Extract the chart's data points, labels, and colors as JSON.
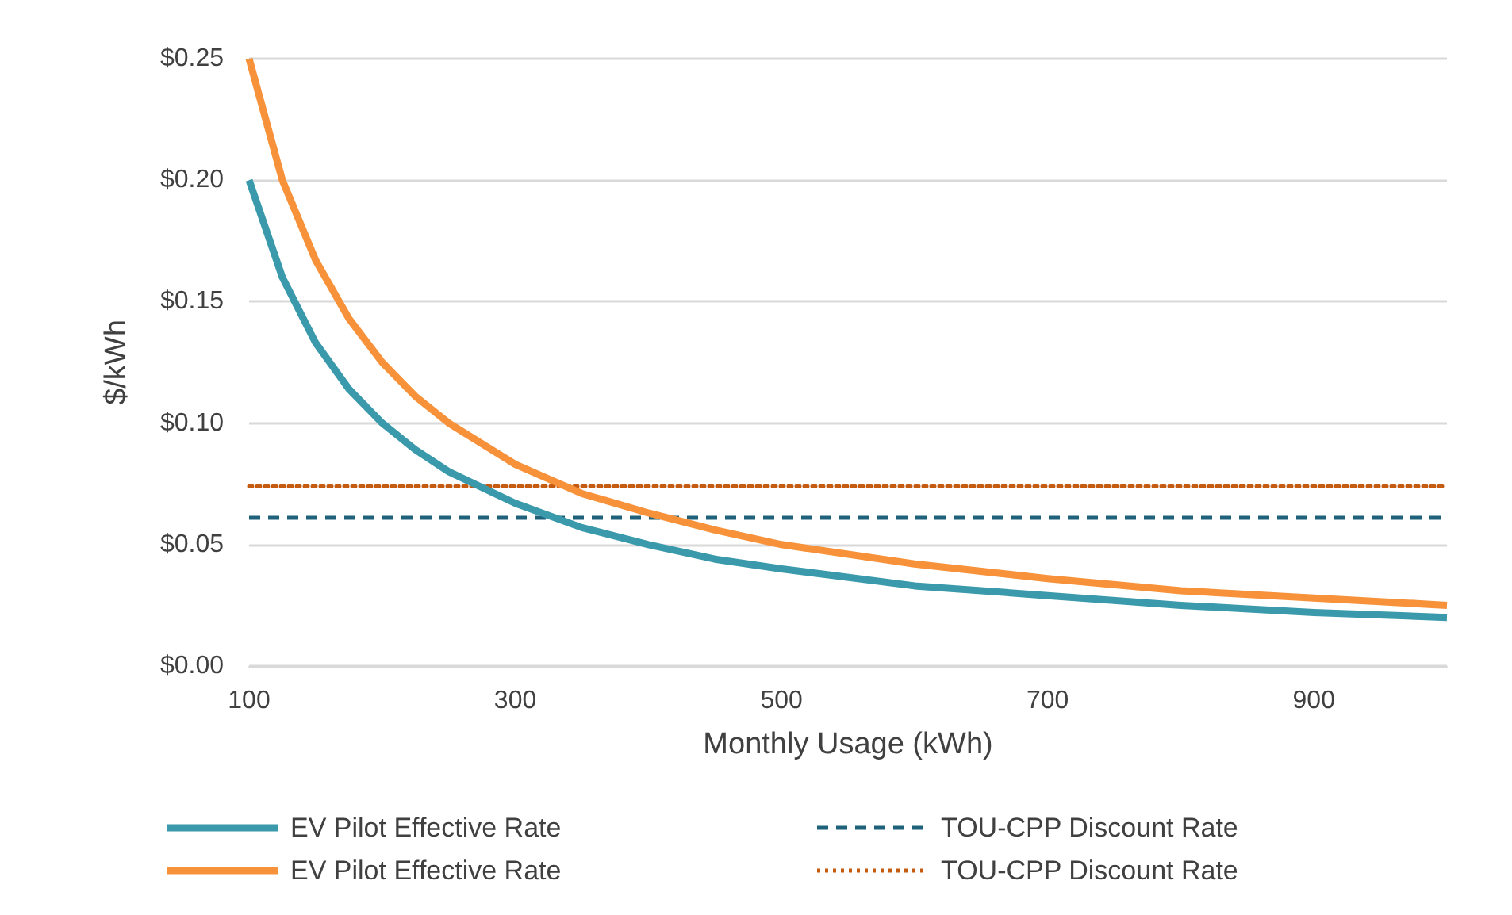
{
  "chart_data": {
    "type": "line",
    "xlabel": "Monthly Usage (kWh)",
    "ylabel": "$/kWh",
    "xlim": [
      100,
      1000
    ],
    "xticks": [
      100,
      300,
      500,
      700,
      900
    ],
    "ylim": [
      0,
      0.25
    ],
    "yticks": [
      {
        "value": 0,
        "label": "$0.00"
      },
      {
        "value": 0.05,
        "label": "$0.05"
      },
      {
        "value": 0.1,
        "label": "$0.10"
      },
      {
        "value": 0.15,
        "label": "$0.15"
      },
      {
        "value": 0.2,
        "label": "$0.20"
      },
      {
        "value": 0.25,
        "label": "$0.25"
      }
    ],
    "grid": "y",
    "legend": "bottom",
    "marker": "none",
    "x": [
      100,
      125,
      150,
      175,
      200,
      225,
      250,
      300,
      350,
      400,
      450,
      500,
      600,
      700,
      800,
      900,
      1000
    ],
    "series": [
      {
        "name": "EV Pilot Effective Rate",
        "color": "#3a9aab",
        "line_style": "solid",
        "values": [
          0.2,
          0.16,
          0.133,
          0.114,
          0.1,
          0.089,
          0.08,
          0.067,
          0.057,
          0.05,
          0.044,
          0.04,
          0.033,
          0.029,
          0.025,
          0.022,
          0.02
        ]
      },
      {
        "name": "EV Pilot Effective Rate",
        "color": "#f7923a",
        "line_style": "solid",
        "values": [
          0.25,
          0.2,
          0.167,
          0.143,
          0.125,
          0.111,
          0.1,
          0.083,
          0.071,
          0.063,
          0.056,
          0.05,
          0.042,
          0.036,
          0.031,
          0.028,
          0.025
        ]
      }
    ],
    "ref_lines": [
      {
        "axis": "y",
        "value": 0.061,
        "label": "TOU-CPP Discount Rate",
        "color": "#1f607a",
        "line_style": "dashed"
      },
      {
        "axis": "y",
        "value": 0.074,
        "label": "TOU-CPP Discount Rate",
        "color": "#c55a11",
        "line_style": "dotted"
      }
    ]
  }
}
